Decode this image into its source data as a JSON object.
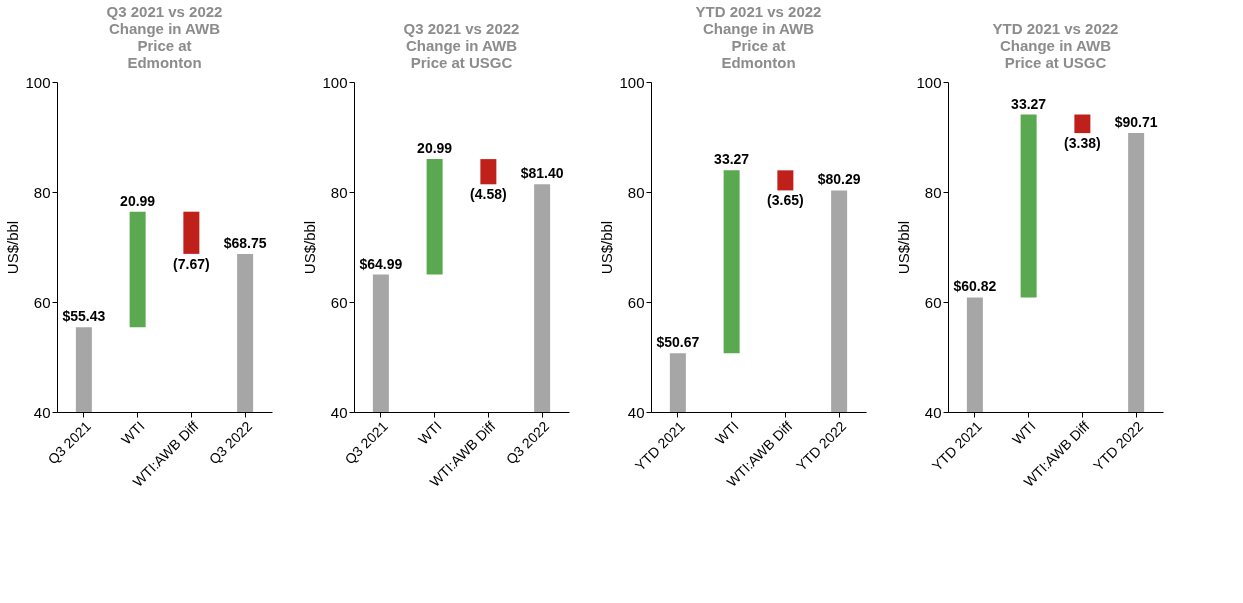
{
  "chart_data": [
    {
      "type": "bar",
      "title": "Q3 2021 vs 2022 Change in AWB Price at Edmonton",
      "ylabel": "US$/bbl",
      "categories": [
        "Q3 2021",
        "WTI",
        "WTI:AWB Diff",
        "Q3 2022"
      ],
      "values": [
        55.43,
        20.99,
        -7.67,
        68.75
      ],
      "base": [
        null,
        55.43,
        76.42,
        null
      ],
      "colors": [
        "#a6a6a6",
        "#5aa84f",
        "#c0201a",
        "#a6a6a6"
      ],
      "value_labels": [
        "$55.43",
        "20.99",
        "(7.67)",
        "$68.75"
      ],
      "ylim": [
        40,
        100
      ],
      "yticks": [
        40,
        60,
        80,
        100
      ],
      "grid": false
    },
    {
      "type": "bar",
      "title": "Q3 2021 vs 2022 Change in AWB Price at USGC",
      "ylabel": "US$/bbl",
      "categories": [
        "Q3 2021",
        "WTI",
        "WTI:AWB Diff",
        "Q3 2022"
      ],
      "values": [
        64.99,
        20.99,
        -4.58,
        81.4
      ],
      "base": [
        null,
        64.99,
        85.98,
        null
      ],
      "colors": [
        "#a6a6a6",
        "#5aa84f",
        "#c0201a",
        "#a6a6a6"
      ],
      "value_labels": [
        "$64.99",
        "20.99",
        "(4.58)",
        "$81.40"
      ],
      "ylim": [
        40,
        100
      ],
      "yticks": [
        40,
        60,
        80,
        100
      ],
      "grid": false
    },
    {
      "type": "bar",
      "title": "YTD 2021 vs 2022 Change in AWB Price at Edmonton",
      "ylabel": "US$/bbl",
      "categories": [
        "YTD 2021",
        "WTI",
        "WTI:AWB Diff",
        "YTD 2022"
      ],
      "values": [
        50.67,
        33.27,
        -3.65,
        80.29
      ],
      "base": [
        null,
        50.67,
        83.94,
        null
      ],
      "colors": [
        "#a6a6a6",
        "#5aa84f",
        "#c0201a",
        "#a6a6a6"
      ],
      "value_labels": [
        "$50.67",
        "33.27",
        "(3.65)",
        "$80.29"
      ],
      "ylim": [
        40,
        100
      ],
      "yticks": [
        40,
        60,
        80,
        100
      ],
      "grid": false
    },
    {
      "type": "bar",
      "title": "YTD 2021 vs 2022 Change in AWB Price at USGC",
      "ylabel": "US$/bbl",
      "categories": [
        "YTD 2021",
        "WTI",
        "WTI:AWB Diff",
        "YTD 2022"
      ],
      "values": [
        60.82,
        33.27,
        -3.38,
        90.71
      ],
      "base": [
        null,
        60.82,
        94.09,
        null
      ],
      "colors": [
        "#a6a6a6",
        "#5aa84f",
        "#c0201a",
        "#a6a6a6"
      ],
      "value_labels": [
        "$60.82",
        "33.27",
        "(3.38)",
        "$90.71"
      ],
      "ylim": [
        40,
        100
      ],
      "yticks": [
        40,
        60,
        80,
        100
      ],
      "grid": false
    }
  ]
}
